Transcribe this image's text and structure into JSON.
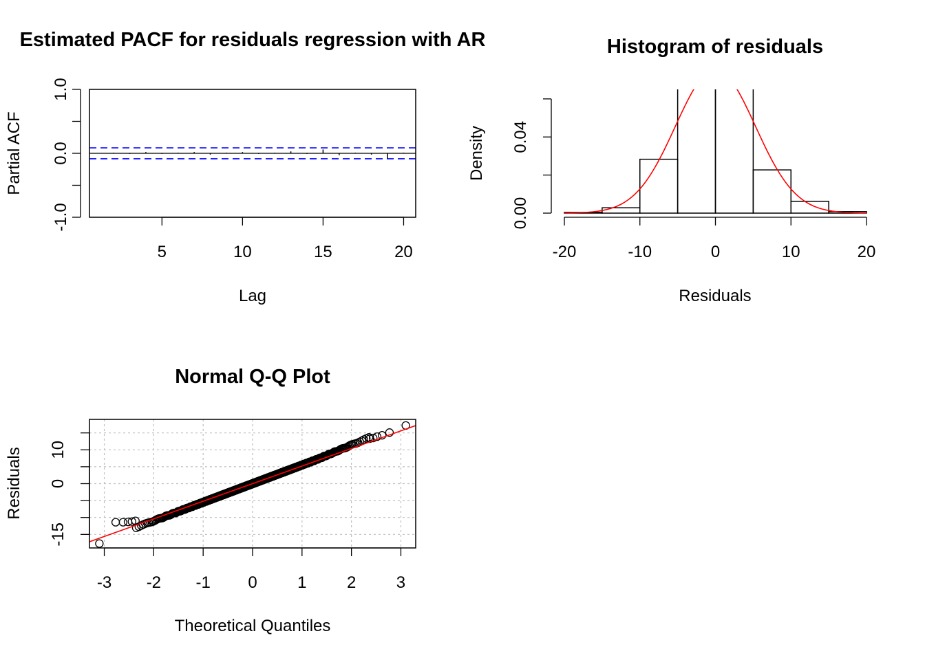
{
  "colors": {
    "ci_line": "#0000FF",
    "density_curve": "#FF0000",
    "qq_line": "#FF0000",
    "grid": "#BEBEBE",
    "axis": "#000000"
  },
  "chart_data": [
    {
      "id": "pacf",
      "type": "bar",
      "title": "Estimated PACF for residuals regression with AR",
      "xlabel": "Lag",
      "ylabel": "Partial ACF",
      "xlim": [
        0.5,
        20.75
      ],
      "ylim": [
        -1.0,
        1.0
      ],
      "xticks": [
        5,
        10,
        15,
        20
      ],
      "xtick_labels": [
        "5",
        "10",
        "15",
        "20"
      ],
      "yticks": [
        -1.0,
        -0.5,
        0.0,
        0.5,
        1.0
      ],
      "ytick_labels": [
        "-1.0",
        "",
        "0.0",
        "",
        "1.0"
      ],
      "lags": [
        1,
        2,
        3,
        4,
        5,
        6,
        7,
        8,
        9,
        10,
        11,
        12,
        13,
        14,
        15,
        16,
        17,
        18,
        19,
        20
      ],
      "values": [
        0.0,
        0.01,
        -0.01,
        0.02,
        -0.01,
        0.01,
        0.02,
        -0.02,
        0.01,
        0.02,
        -0.01,
        0.01,
        0.03,
        -0.01,
        0.06,
        -0.03,
        0.01,
        -0.02,
        -0.08,
        0.01
      ],
      "ci": 0.085,
      "grid": false,
      "legend": "none"
    },
    {
      "id": "hist",
      "type": "bar",
      "title": "Histogram of residuals",
      "xlabel": "Residuals",
      "ylabel": "Density",
      "xlim": [
        -20,
        20
      ],
      "ylim": [
        0,
        0.065
      ],
      "xticks": [
        -20,
        -10,
        0,
        10,
        20
      ],
      "xtick_labels": [
        "-20",
        "-10",
        "0",
        "10",
        "20"
      ],
      "yticks": [
        0.0,
        0.02,
        0.04,
        0.06
      ],
      "ytick_labels": [
        "0.00",
        "",
        "0.04",
        ""
      ],
      "breaks": [
        -20,
        -15,
        -10,
        -5,
        0,
        5,
        10,
        15,
        20
      ],
      "density": [
        0.0004,
        0.0028,
        0.0283,
        0.0732,
        0.0673,
        0.0227,
        0.0062,
        0.0008
      ],
      "normal_curve": {
        "mean": 0.0,
        "sd": 5.3
      },
      "grid": false,
      "legend": "none"
    },
    {
      "id": "qq",
      "type": "scatter",
      "title": "Normal Q-Q Plot",
      "xlabel": "Theoretical Quantiles",
      "ylabel": "Residuals",
      "xlim": [
        -3.3,
        3.3
      ],
      "ylim": [
        -19,
        19
      ],
      "xticks": [
        -3,
        -2,
        -1,
        0,
        1,
        2,
        3
      ],
      "xtick_labels": [
        "-3",
        "-2",
        "-1",
        "0",
        "1",
        "2",
        "3"
      ],
      "yticks": [
        -15,
        -10,
        -5,
        0,
        5,
        10,
        15
      ],
      "ytick_labels": [
        "-15",
        "",
        "",
        "0",
        "",
        "10",
        ""
      ],
      "sample_size": 700,
      "sample_sd": 5.5,
      "extremes": {
        "low": [
          [
            -3.1,
            -17.7
          ],
          [
            -2.77,
            -11.4
          ],
          [
            -2.62,
            -11.4
          ],
          [
            -2.52,
            -11.3
          ],
          [
            -2.44,
            -11.2
          ],
          [
            -2.37,
            -11.0
          ]
        ],
        "high": [
          [
            2.37,
            13.3
          ],
          [
            2.44,
            13.5
          ],
          [
            2.52,
            13.9
          ],
          [
            2.62,
            14.3
          ],
          [
            2.77,
            15.1
          ],
          [
            3.1,
            17.2
          ]
        ]
      },
      "qq_line": {
        "intercept": 0.0,
        "slope": 5.2
      },
      "grid": true,
      "legend": "none"
    }
  ]
}
